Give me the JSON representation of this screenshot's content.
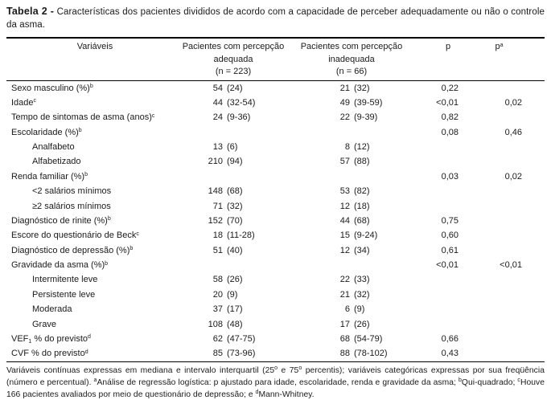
{
  "title": {
    "bold": "Tabela 2 -",
    "text": " Características dos pacientes divididos de acordo com a capacidade de perceber adequadamente ou não o controle da asma."
  },
  "table": {
    "headers": {
      "variaveis": "Variáveis",
      "adequada": {
        "l1": "Pacientes com percepção",
        "l2": "adequada",
        "l3": "(n = 223)"
      },
      "inadequada": {
        "l1": "Pacientes com percepção",
        "l2": "inadequada",
        "l3": "(n = 66)"
      },
      "p": "p",
      "pa": "p^{a}"
    },
    "rows": [
      {
        "label": "Sexo masculino (%)^{b}",
        "indent": false,
        "adequada": "54 (24)",
        "inadequada": "21 (32)",
        "p": "0,22",
        "pa": ""
      },
      {
        "label": "Idade^{c}",
        "indent": false,
        "adequada": "44 (32-54)",
        "inadequada": "49 (39-59)",
        "p": "<0,01",
        "pa": "0,02"
      },
      {
        "label": "Tempo de sintomas de asma (anos)^{c}",
        "indent": false,
        "adequada": "24 (9-36)",
        "inadequada": "22 (9-39)",
        "p": "0,82",
        "pa": ""
      },
      {
        "label": "Escolaridade (%)^{b}",
        "indent": false,
        "adequada": "",
        "inadequada": "",
        "p": "0,08",
        "pa": "0,46"
      },
      {
        "label": "Analfabeto",
        "indent": true,
        "adequada": "13 (6)",
        "inadequada": "8 (12)",
        "p": "",
        "pa": ""
      },
      {
        "label": "Alfabetizado",
        "indent": true,
        "adequada": "210 (94)",
        "inadequada": "57 (88)",
        "p": "",
        "pa": ""
      },
      {
        "label": "Renda familiar (%)^{b}",
        "indent": false,
        "adequada": "",
        "inadequada": "",
        "p": "0,03",
        "pa": "0,02"
      },
      {
        "label": "<2 salários mínimos",
        "indent": true,
        "adequada": "148 (68)",
        "inadequada": "53 (82)",
        "p": "",
        "pa": ""
      },
      {
        "label": "≥2 salários mínimos",
        "indent": true,
        "adequada": "71 (32)",
        "inadequada": "12 (18)",
        "p": "",
        "pa": ""
      },
      {
        "label": "Diagnóstico de rinite (%)^{b}",
        "indent": false,
        "adequada": "152 (70)",
        "inadequada": "44 (68)",
        "p": "0,75",
        "pa": ""
      },
      {
        "label": "Escore do questionário de Beck^{c}",
        "indent": false,
        "adequada": "18 (11-28)",
        "inadequada": "15 (9-24)",
        "p": "0,60",
        "pa": ""
      },
      {
        "label": "Diagnóstico de depressão (%)^{b}",
        "indent": false,
        "adequada": "51 (40)",
        "inadequada": "12 (34)",
        "p": "0,61",
        "pa": ""
      },
      {
        "label": "Gravidade da asma (%)^{b}",
        "indent": false,
        "adequada": "",
        "inadequada": "",
        "p": "<0,01",
        "pa": "<0,01"
      },
      {
        "label": "Intermitente leve",
        "indent": true,
        "adequada": "58 (26)",
        "inadequada": "22 (33)",
        "p": "",
        "pa": ""
      },
      {
        "label": "Persistente leve",
        "indent": true,
        "adequada": "20 (9)",
        "inadequada": "21 (32)",
        "p": "",
        "pa": ""
      },
      {
        "label": "Moderada",
        "indent": true,
        "adequada": "37 (17)",
        "inadequada": "6 (9)",
        "p": "",
        "pa": ""
      },
      {
        "label": "Grave",
        "indent": true,
        "adequada": "108 (48)",
        "inadequada": "17 (26)",
        "p": "",
        "pa": ""
      },
      {
        "label": "VEF_{1} % do previsto^{d}",
        "indent": false,
        "adequada": "62 (47-75)",
        "inadequada": "68 (54-79)",
        "p": "0,66",
        "pa": ""
      },
      {
        "label": "CVF % do previsto^{d}",
        "indent": false,
        "adequada": "85 (73-96)",
        "inadequada": "88 (78-102)",
        "p": "0,43",
        "pa": ""
      }
    ]
  },
  "footnote": "Variáveis contínuas expressas em mediana e intervalo interquartil (25^{o} e 75^{o} percentis); variáveis categóricas expressas por sua freqüência (número e percentual). ^{a}Análise de regressão logística: p ajustado para idade, escolaridade, renda e gravidade da asma; ^{b}Qui-quadrado; ^{c}Houve 166 pacientes avaliados por meio de questionário de depressão; e ^{d}Mann-Whitney.",
  "colors": {
    "text": "#1a1a1a",
    "rule": "#000000",
    "background": "#ffffff"
  }
}
